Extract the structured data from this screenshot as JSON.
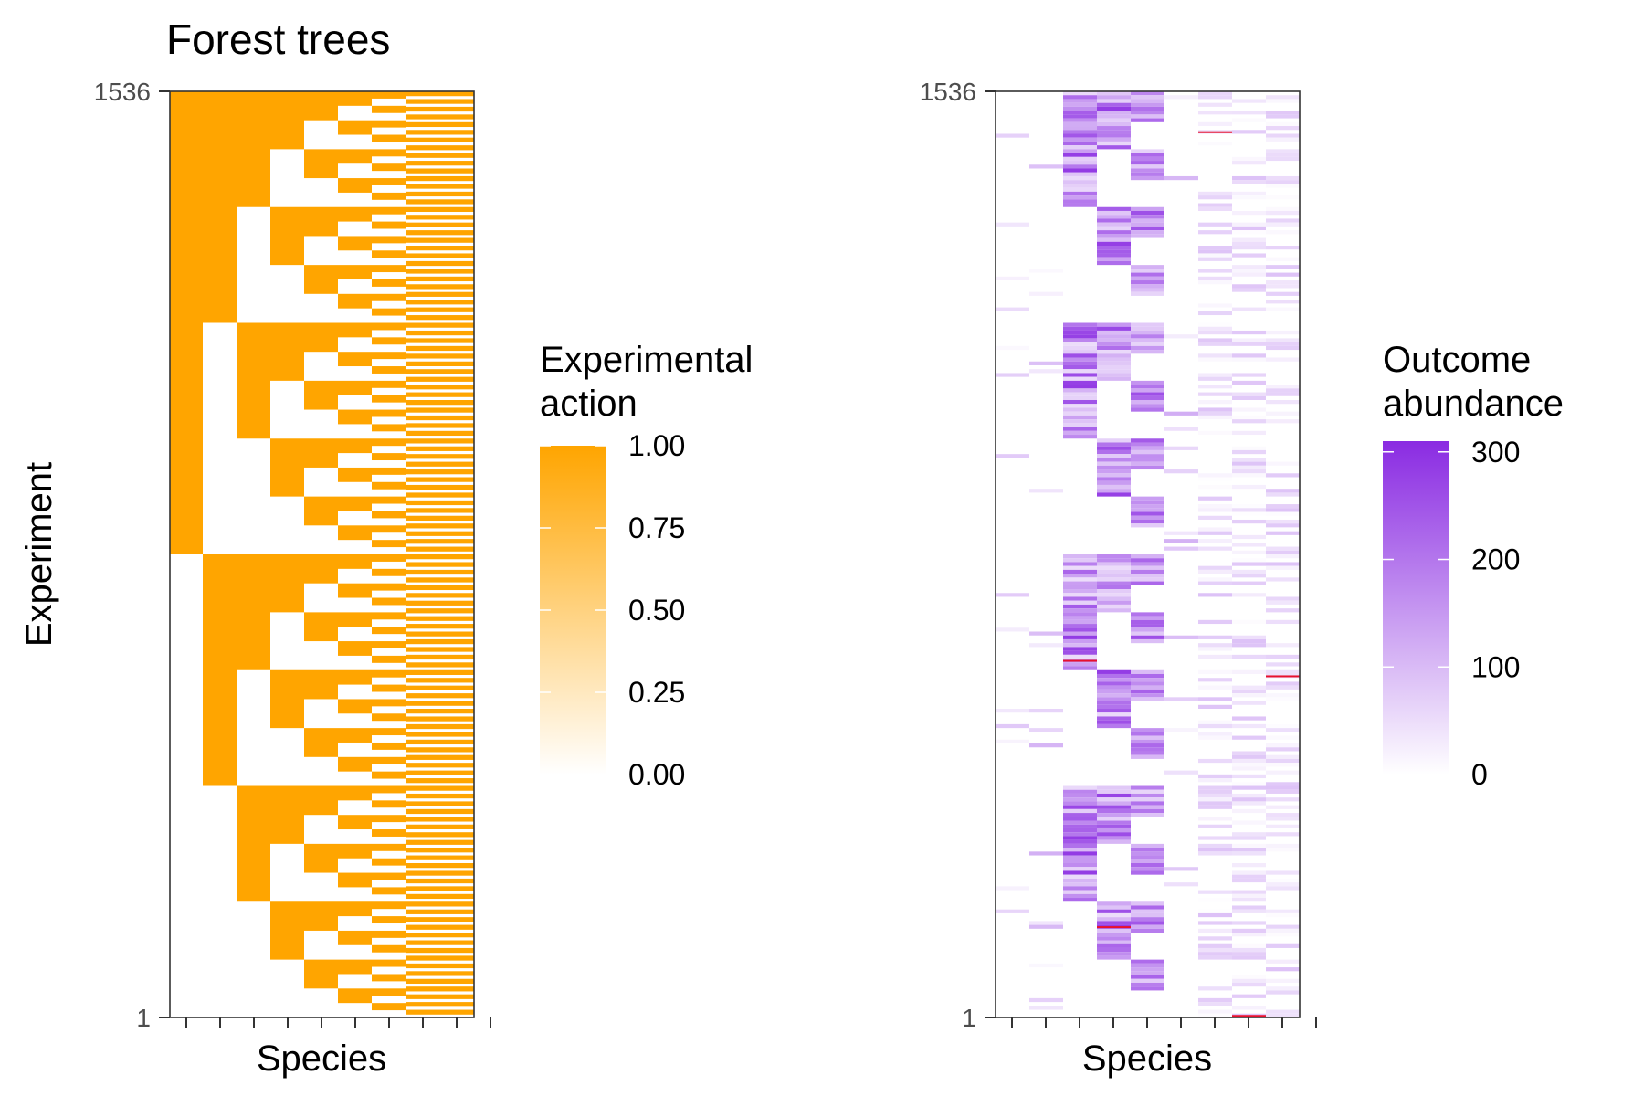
{
  "title": "Forest trees",
  "chart_data": [
    {
      "type": "heatmap",
      "panel": "action",
      "xlabel": "Species",
      "ylabel": "Experiment",
      "y_ticks": [
        "1",
        "1536"
      ],
      "y_range": [
        1,
        1536
      ],
      "n_species": 9,
      "species_ticks": 10,
      "design": "full factorial presence/absence; experiment e (0-based) includes species k when bit k of (1535 - e) in base-2 count pattern is 1",
      "value_range": [
        0,
        1
      ],
      "legend": {
        "title_lines": [
          "Experimental",
          "action"
        ],
        "ticks": [
          "0.00",
          "0.25",
          "0.50",
          "0.75",
          "1.00"
        ],
        "tick_values": [
          0,
          0.25,
          0.5,
          0.75,
          1
        ],
        "color_low": "#ffffff",
        "color_high": "#ffa500"
      }
    },
    {
      "type": "heatmap",
      "panel": "outcome",
      "xlabel": "Species",
      "y_ticks": [
        "1",
        "1536"
      ],
      "y_range": [
        1,
        1536
      ],
      "n_species": 9,
      "species_ticks": 10,
      "value_range": [
        0,
        310
      ],
      "highlight_color": "#e8112d",
      "legend": {
        "title_lines": [
          "Outcome",
          "abundance"
        ],
        "ticks": [
          "0",
          "100",
          "200",
          "300"
        ],
        "tick_values": [
          0,
          100,
          200,
          300
        ],
        "color_low": "#ffffff",
        "color_high": "#8a2be2"
      }
    }
  ]
}
